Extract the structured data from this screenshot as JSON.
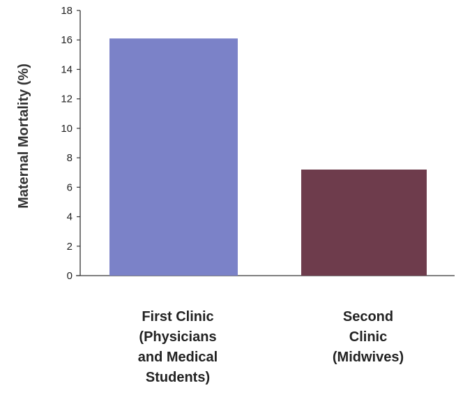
{
  "chart_data": {
    "type": "bar",
    "categories": [
      [
        "First Clinic",
        "(Physicians",
        "and Medical",
        "Students)"
      ],
      [
        "Second",
        "Clinic",
        "(Midwives)"
      ]
    ],
    "values": [
      16.1,
      7.2
    ],
    "ylabel": "Maternal Mortality (%)",
    "xlabel": "",
    "title": "",
    "ylim": [
      0,
      18
    ],
    "yticks": [
      0,
      2,
      4,
      6,
      8,
      10,
      12,
      14,
      16,
      18
    ],
    "grid": false,
    "bar_colors": [
      "#7b82c8",
      "#6e3c4c"
    ]
  }
}
